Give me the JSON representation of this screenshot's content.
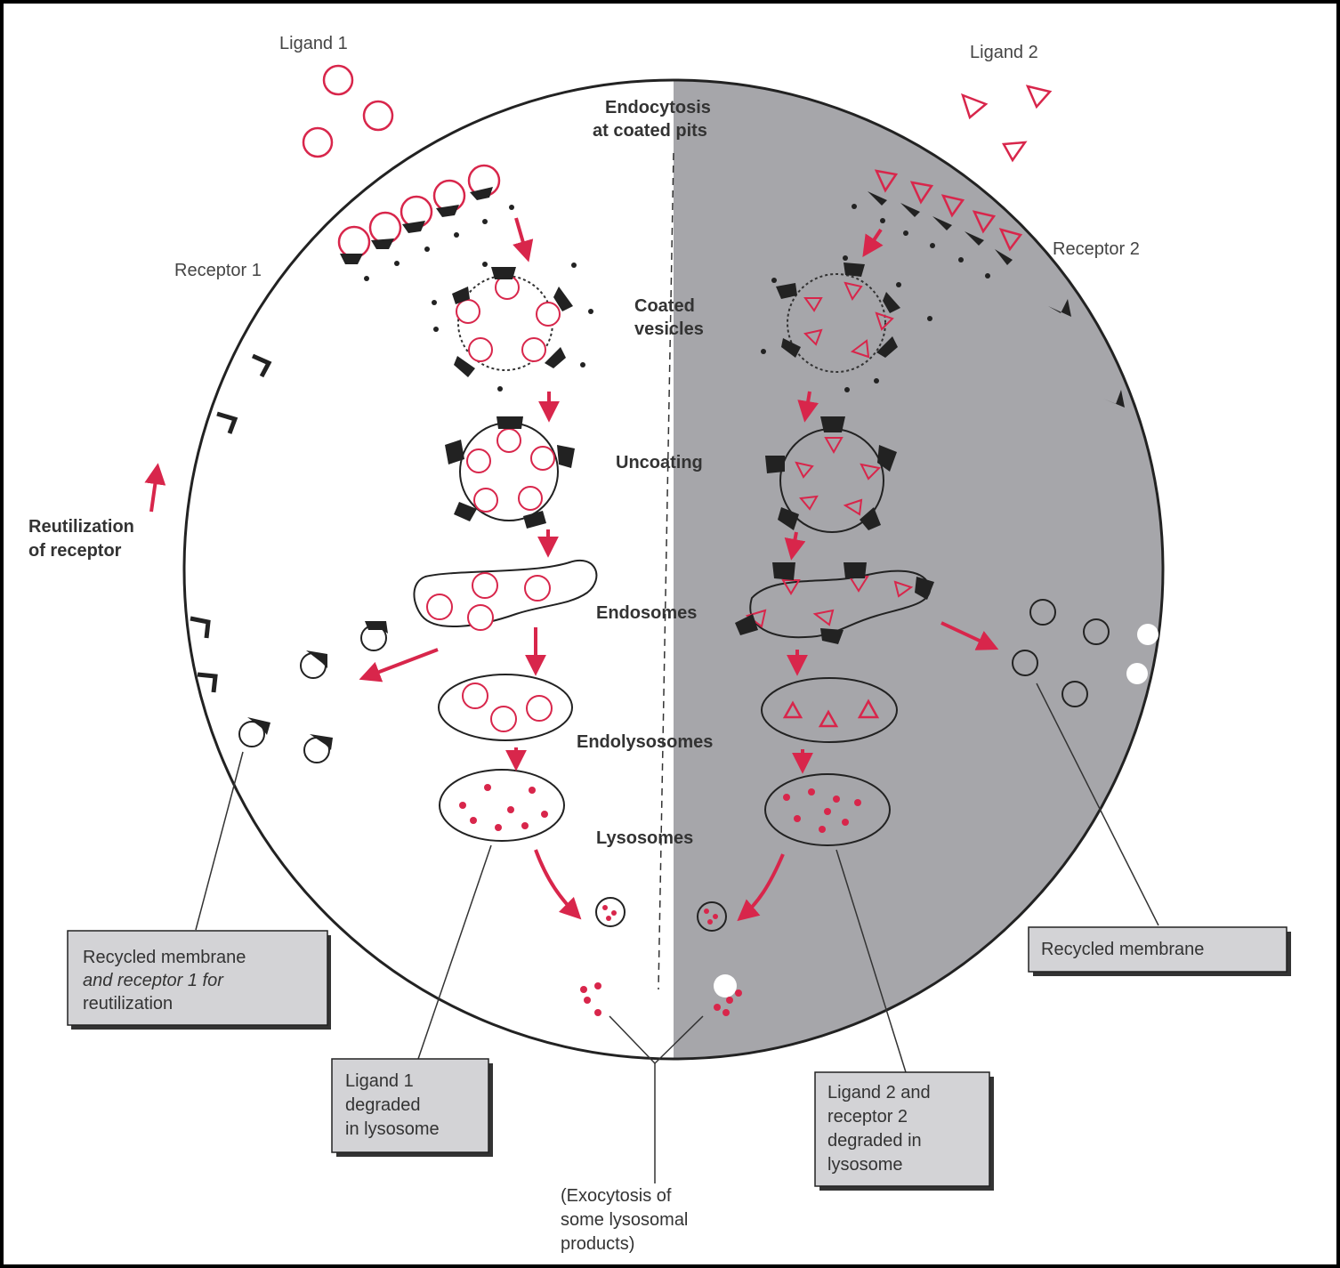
{
  "labels": {
    "ligand1": "Ligand 1",
    "ligand2": "Ligand 2",
    "endocytosis_line1": "Endocytosis",
    "endocytosis_line2": "at coated pits",
    "receptor1": "Receptor 1",
    "receptor2": "Receptor 2",
    "coated_line1": "Coated",
    "coated_line2": "vesicles",
    "uncoating": "Uncoating",
    "endosomes": "Endosomes",
    "endolysosomes": "Endolysosomes",
    "lysosomes": "Lysosomes",
    "reutilization_line1": "Reutilization",
    "reutilization_line2": "of receptor"
  },
  "boxes": {
    "recycled_receptor": [
      "Recycled membrane",
      "and receptor 1 for",
      "reutilization"
    ],
    "ligand1_degraded": [
      "Ligand 1",
      "degraded",
      "in lysosome"
    ],
    "ligand2_degraded": [
      "Ligand 2 and",
      "receptor 2",
      "degraded in",
      "lysosome"
    ],
    "recycled_membrane": [
      "Recycled membrane"
    ]
  },
  "exocytosis": [
    "(Exocytosis of",
    "some lysosomal",
    "products)"
  ],
  "colors": {
    "ligand": "#d8264b",
    "arrow": "#d8264b",
    "shade": "#a6a6aa",
    "box_fill": "#d3d3d6",
    "outline": "#222222"
  }
}
